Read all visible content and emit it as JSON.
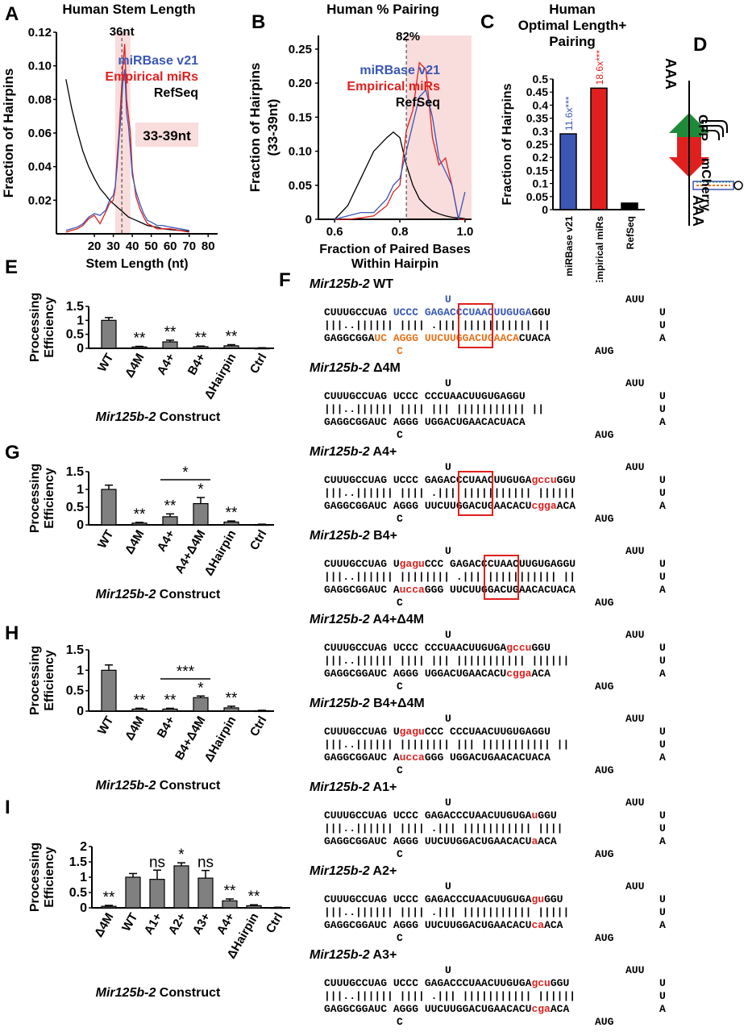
{
  "panelA": {
    "letter": "A",
    "title": "Human Stem Length",
    "ylabel": "Fraction of Hairpins",
    "xlabel": "Stem Length (nt)",
    "peak_label": "36nt",
    "range_label": "33-39nt",
    "legend": [
      "miRBase v21",
      "Empirical miRs",
      "RefSeq"
    ]
  },
  "panelB": {
    "letter": "B",
    "title": "Human % Pairing",
    "ylabel1": "Fraction of Hairpins",
    "ylabel2": "(33-39nt)",
    "xlabel1": "Fraction of Paired Bases",
    "xlabel2": "Within Hairpin",
    "peak_label": "82%",
    "legend": [
      "miRBase v21",
      "Empirical miRs",
      "RefSeq"
    ]
  },
  "panelC": {
    "letter": "C",
    "title1": "Human",
    "title2": "Optimal Length+",
    "title3": "Pairing",
    "ylabel": "Fraction of Hairpins",
    "enrich": [
      "11.6x***",
      "18.6x***"
    ]
  },
  "panelD": {
    "letter": "D",
    "gfp": "GFP",
    "mcherry": "mCherry",
    "polyA_top": "AAA",
    "polyA_bottom": "AAA"
  },
  "barE": {
    "letter": "E",
    "ylabel1": "Processing",
    "ylabel2": "Efficiency",
    "xtitle": "Mir125b-2 Construct"
  },
  "barG": {
    "letter": "G",
    "ylabel1": "Processing",
    "ylabel2": "Efficiency",
    "xtitle": "Mir125b-2 Construct"
  },
  "barH": {
    "letter": "H",
    "ylabel1": "Processing",
    "ylabel2": "Efficiency",
    "xtitle": "Mir125b-2 Construct"
  },
  "barI": {
    "letter": "I",
    "ylabel1": "Processing",
    "ylabel2": "Efficiency",
    "xtitle": "Mir125b-2 Construct"
  },
  "panelF": {
    "letter": "F",
    "gene": "Mir125b-2",
    "constructs": [
      {
        "name": "WT",
        "loop": "U",
        "tail": "AUU",
        "top": "CUUUGCCUAG UCCC GAGACCCUAACUUGUGAGGU",
        "mid": "|||..|||||| |||| .||| ||||||||||| ||",
        "bot": "GAGGCGGAUCAGGGUUCUUGGACUGAACACUACA",
        "bulge": "C",
        "end1": "U",
        "end2": "A",
        "end3": "AUG"
      },
      {
        "name": "Δ4M",
        "loop": "U",
        "tail": "AUU",
        "top": "CUUUGCCUAG UCCC CCCUAACUUGUGAGGU",
        "mid": "|||..|||||| |||| ||| ||||||||||| ||",
        "bot": "GAGGCGGAUC AGGG UGGACUGAACACUACA",
        "bulge": "C",
        "end1": "U",
        "end2": "A",
        "end3": "AUG"
      },
      {
        "name": "A4+",
        "loop": "U",
        "tail": "AUU",
        "top": "CUUUGCCUAG UCCC GAGACCCUAACUUGUGAgccuGGU",
        "mid": "|||..|||||| |||| .||| ||||||||||| ||||||",
        "bot": "GAGGCGGAUC AGGG UUCUUGGACUGAACACUcggaACA",
        "bulge": "C",
        "end1": "U",
        "end2": "A",
        "end3": "AUG"
      },
      {
        "name": "B4+",
        "loop": "U",
        "tail": "AUU",
        "top": "CUUUGCCUAG UgaguCCC GAGACCCUAACUUGUGAGGU",
        "mid": "|||..|||||| |||||||| .||| ||||||||||| ||",
        "bot": "GAGGCGGAUC AuccaGGG UUCUUGGACUGAACACUACA",
        "bulge": "C",
        "end1": "U",
        "end2": "A",
        "end3": "AUG"
      },
      {
        "name": "A4+Δ4M",
        "loop": "U",
        "tail": "AUU",
        "top": "CUUUGCCUAG UCCC CCCUAACUUGUGAgccuGGU",
        "mid": "|||..|||||| |||| ||| ||||||||||| ||||||",
        "bot": "GAGGCGGAUC AGGG UGGACUGAACACUcggaACA",
        "bulge": "C",
        "end1": "U",
        "end2": "A",
        "end3": "AUG"
      },
      {
        "name": "B4+Δ4M",
        "loop": "U",
        "tail": "AUU",
        "top": "CUUUGCCUAG UgaguCCC CCCUAACUUGUGAGGU",
        "mid": "|||..|||||| |||||||| ||| ||||||||||| ||",
        "bot": "GAGGCGGAUC AuccaGGG UGGACUGAACACUACA",
        "bulge": "C",
        "end1": "U",
        "end2": "A",
        "end3": "AUG"
      },
      {
        "name": "A1+",
        "loop": "U",
        "tail": "AUU",
        "top": "CUUUGCCUAG UCCC GAGACCCUAACUUGUGAuGGU",
        "mid": "|||..|||||| |||| .||| ||||||||||| ||||",
        "bot": "GAGGCGGAUC AGGG UUCUUGGACUGAACACUaACA",
        "bulge": "C",
        "end1": "U",
        "end2": "A",
        "end3": "AUG"
      },
      {
        "name": "A2+",
        "loop": "U",
        "tail": "AUU",
        "top": "CUUUGCCUAG UCCC GAGACCCUAACUUGUGAguGGU",
        "mid": "|||..|||||| |||| .||| ||||||||||| |||||",
        "bot": "GAGGCGGAUC AGGG UUCUUGGACUGAACACUcaACA",
        "bulge": "C",
        "end1": "U",
        "end2": "A",
        "end3": "AUG"
      },
      {
        "name": "A3+",
        "loop": "U",
        "tail": "AUU",
        "top": "CUUUGCCUAG UCCC GAGACCCUAACUUGUGAgcuGGU",
        "mid": "|||..|||||| |||| .||| ||||||||||| ||||||",
        "bot": "GAGGCGGAUC AGGG UUCUUGGACUGAACACUcgaACA",
        "bulge": "C",
        "end1": "U",
        "end2": "A",
        "end3": "AUG"
      }
    ]
  },
  "chart_data": [
    {
      "type": "line",
      "panel": "A",
      "title": "Human Stem Length",
      "xlabel": "Stem Length (nt)",
      "ylabel": "Fraction of Hairpins",
      "xlim": [
        0,
        85
      ],
      "ylim": [
        0,
        0.12
      ],
      "xticks": [
        20,
        30,
        40,
        50,
        60,
        70,
        80
      ],
      "yticks": [
        0.02,
        0.04,
        0.06,
        0.08,
        0.1,
        0.12
      ],
      "ytick_labels": [
        "0.02",
        "0.04",
        "0.06",
        "0.08",
        "0.10",
        "0.12"
      ],
      "x": [
        5,
        8,
        11,
        14,
        17,
        20,
        23,
        26,
        28,
        30,
        31,
        32,
        33,
        34,
        35,
        36,
        37,
        38,
        39,
        40,
        42,
        44,
        46,
        48,
        50,
        53,
        56,
        60,
        65,
        70
      ],
      "series": [
        {
          "name": "miRBase v21",
          "color": "#3a57b5",
          "values": [
            0.002,
            0.003,
            0.004,
            0.006,
            0.01,
            0.012,
            0.011,
            0.014,
            0.02,
            0.023,
            0.028,
            0.04,
            0.056,
            0.07,
            0.09,
            0.098,
            0.072,
            0.064,
            0.05,
            0.035,
            0.025,
            0.018,
            0.012,
            0.008,
            0.007,
            0.005,
            0.005,
            0.004,
            0.003,
            0.002
          ]
        },
        {
          "name": "Empirical miRs",
          "color": "#e0201e",
          "values": [
            0.001,
            0.002,
            0.003,
            0.005,
            0.009,
            0.011,
            0.006,
            0.013,
            0.018,
            0.02,
            0.027,
            0.045,
            0.06,
            0.08,
            0.1,
            0.113,
            0.08,
            0.07,
            0.06,
            0.038,
            0.022,
            0.015,
            0.01,
            0.006,
            0.005,
            0.003,
            0.003,
            0.003,
            0.002,
            0.001
          ]
        },
        {
          "name": "RefSeq",
          "color": "#000000",
          "values": [
            0.092,
            0.075,
            0.061,
            0.049,
            0.04,
            0.033,
            0.027,
            0.023,
            0.02,
            0.018,
            0.017,
            0.016,
            0.015,
            0.014,
            0.013,
            0.012,
            0.011,
            0.01,
            0.0095,
            0.009,
            0.008,
            0.007,
            0.006,
            0.005,
            0.0045,
            0.004,
            0.003,
            0.0025,
            0.002,
            0.0015
          ]
        }
      ],
      "annotations": [
        "36nt",
        "33-39nt"
      ]
    },
    {
      "type": "line",
      "panel": "B",
      "title": "Human % Pairing",
      "xlabel": "Fraction of Paired Bases Within Hairpin",
      "ylabel": "Fraction of Hairpins (33-39nt)",
      "xlim": [
        0.55,
        1.02
      ],
      "ylim": [
        0,
        0.27
      ],
      "xticks": [
        0.6,
        0.8,
        1.0
      ],
      "xtick_labels": [
        "0.6",
        "0.8",
        "1.0"
      ],
      "yticks": [
        0,
        0.05,
        0.1,
        0.15,
        0.2,
        0.25
      ],
      "ytick_labels": [
        "0",
        "0.05",
        "0.10",
        "0.15",
        "0.20",
        "0.25"
      ],
      "x": [
        0.6,
        0.64,
        0.68,
        0.72,
        0.76,
        0.78,
        0.8,
        0.82,
        0.84,
        0.86,
        0.88,
        0.9,
        0.92,
        0.94,
        0.96,
        0.98,
        1.0
      ],
      "series": [
        {
          "name": "miRBase v21",
          "color": "#3a57b5",
          "values": [
            0.0,
            0.005,
            0.01,
            0.01,
            0.03,
            0.05,
            0.06,
            0.1,
            0.14,
            0.18,
            0.19,
            0.15,
            0.09,
            0.07,
            0.05,
            0.0,
            0.04
          ]
        },
        {
          "name": "Empirical miRs",
          "color": "#e0201e",
          "values": [
            0.0,
            0.0,
            0.002,
            0.005,
            0.02,
            0.04,
            0.05,
            0.13,
            0.16,
            0.23,
            0.22,
            0.12,
            0.08,
            0.09,
            0.05,
            0.0,
            0.0
          ]
        },
        {
          "name": "RefSeq",
          "color": "#000000",
          "values": [
            0.0,
            0.02,
            0.06,
            0.1,
            0.12,
            0.128,
            0.12,
            0.08,
            0.05,
            0.03,
            0.02,
            0.012,
            0.008,
            0.005,
            0.003,
            0.002,
            0.001
          ]
        }
      ],
      "annotations": [
        "82%"
      ]
    },
    {
      "type": "bar",
      "panel": "C",
      "title": "Human Optimal Length+ Pairing",
      "ylabel": "Fraction of Hairpins",
      "categories": [
        "miRBase v21",
        "Empirical miRs",
        "RefSeq"
      ],
      "values": [
        0.29,
        0.465,
        0.025
      ],
      "colors": [
        "#3a57b5",
        "#e0201e",
        "#000000"
      ],
      "ylim": [
        0,
        0.5
      ],
      "yticks": [
        0,
        0.05,
        0.1,
        0.15,
        0.2,
        0.25,
        0.3,
        0.35,
        0.4,
        0.45,
        0.5
      ],
      "annotations": [
        "11.6x***",
        "18.6x***"
      ]
    },
    {
      "type": "bar",
      "panel": "E",
      "categories": [
        "WT",
        "Δ4M",
        "A4+",
        "B4+",
        "ΔHairpin",
        "Ctrl"
      ],
      "values": [
        1.0,
        0.05,
        0.23,
        0.06,
        0.09,
        0.01
      ],
      "errors": [
        0.1,
        0.02,
        0.06,
        0.02,
        0.04,
        0.01
      ],
      "labels": [
        "",
        "**",
        "**",
        "**",
        "**",
        ""
      ],
      "ylim": [
        0,
        1.5
      ],
      "yticks": [
        0,
        0.5,
        1,
        1.5
      ],
      "ytick_labels": [
        "0",
        "0.5",
        "1",
        "1.5"
      ]
    },
    {
      "type": "bar",
      "panel": "G",
      "categories": [
        "WT",
        "Δ4M",
        "A4+",
        "A4+Δ4M",
        "ΔHairpin",
        "Ctrl"
      ],
      "values": [
        1.0,
        0.05,
        0.23,
        0.6,
        0.08,
        0.01
      ],
      "errors": [
        0.12,
        0.02,
        0.08,
        0.17,
        0.03,
        0.01
      ],
      "labels": [
        "",
        "**",
        "**",
        "*",
        "**",
        ""
      ],
      "bracket": {
        "from": "A4+",
        "to": "A4+Δ4M",
        "label": "*"
      },
      "ylim": [
        0,
        1.5
      ],
      "yticks": [
        0,
        0.5,
        1,
        1.5
      ],
      "ytick_labels": [
        "0",
        "0.5",
        "1",
        "1.5"
      ]
    },
    {
      "type": "bar",
      "panel": "H",
      "categories": [
        "WT",
        "Δ4M",
        "B4+",
        "B4+Δ4M",
        "ΔHairpin",
        "Ctrl"
      ],
      "values": [
        1.0,
        0.05,
        0.05,
        0.33,
        0.08,
        0.01
      ],
      "errors": [
        0.13,
        0.02,
        0.02,
        0.04,
        0.04,
        0.01
      ],
      "labels": [
        "",
        "**",
        "**",
        "*",
        "**",
        ""
      ],
      "bracket": {
        "from": "B4+",
        "to": "B4+Δ4M",
        "label": "***"
      },
      "ylim": [
        0,
        1.5
      ],
      "yticks": [
        0,
        0.5,
        1,
        1.5
      ],
      "ytick_labels": [
        "0",
        "0.5",
        "1",
        "1.5"
      ]
    },
    {
      "type": "bar",
      "panel": "I",
      "categories": [
        "Δ4M",
        "WT",
        "A1+",
        "A2+",
        "A3+",
        "A4+",
        "ΔHairpin",
        "Ctrl"
      ],
      "values": [
        0.05,
        1.0,
        0.93,
        1.37,
        0.97,
        0.23,
        0.07,
        0.01
      ],
      "errors": [
        0.03,
        0.12,
        0.3,
        0.1,
        0.25,
        0.06,
        0.03,
        0.01
      ],
      "labels": [
        "**",
        "",
        "ns",
        "*",
        "ns",
        "**",
        "**",
        ""
      ],
      "ylim": [
        0,
        2
      ],
      "yticks": [
        0,
        0.5,
        1,
        1.5,
        2
      ],
      "ytick_labels": [
        "0",
        "0.5",
        "1",
        "1.5",
        "2"
      ]
    }
  ]
}
